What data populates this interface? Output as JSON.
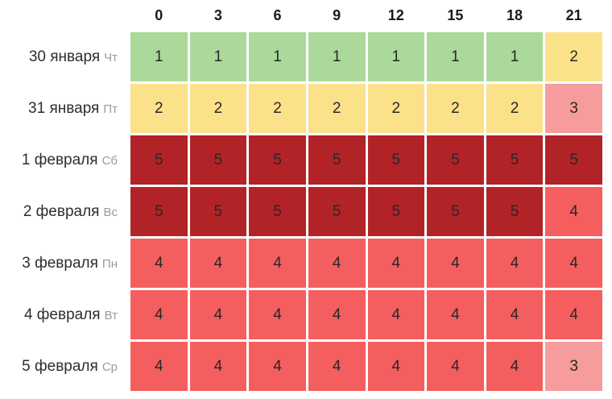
{
  "table": {
    "hours": [
      "0",
      "3",
      "6",
      "9",
      "12",
      "15",
      "18",
      "21"
    ],
    "rows": [
      {
        "date": "30 января",
        "day": "Чт",
        "values": [
          1,
          1,
          1,
          1,
          1,
          1,
          1,
          2
        ]
      },
      {
        "date": "31 января",
        "day": "Пт",
        "values": [
          2,
          2,
          2,
          2,
          2,
          2,
          2,
          3
        ]
      },
      {
        "date": "1 февраля",
        "day": "Сб",
        "values": [
          5,
          5,
          5,
          5,
          5,
          5,
          5,
          5
        ]
      },
      {
        "date": "2 февраля",
        "day": "Вс",
        "values": [
          5,
          5,
          5,
          5,
          5,
          5,
          5,
          4
        ]
      },
      {
        "date": "3 февраля",
        "day": "Пн",
        "values": [
          4,
          4,
          4,
          4,
          4,
          4,
          4,
          4
        ]
      },
      {
        "date": "4 февраля",
        "day": "Вт",
        "values": [
          4,
          4,
          4,
          4,
          4,
          4,
          4,
          4
        ]
      },
      {
        "date": "5 февраля",
        "day": "Ср",
        "values": [
          4,
          4,
          4,
          4,
          4,
          4,
          4,
          3
        ]
      }
    ]
  },
  "colors": {
    "k1": "#abd99a",
    "k2": "#fbe18a",
    "k3": "#f69c9d",
    "k4": "#f55e5e",
    "k5": "#b22327",
    "background": "#ffffff",
    "header_text": "#1a1a1a",
    "cell_text": "#272727",
    "date_text": "#2e2e2e",
    "weekday_text": "#9b9b9b"
  },
  "chart_data": {
    "type": "heatmap",
    "title": "",
    "xlabel": "",
    "ylabel": "",
    "x_categories": [
      "0",
      "3",
      "6",
      "9",
      "12",
      "15",
      "18",
      "21"
    ],
    "y_categories": [
      "30 января Чт",
      "31 января Пт",
      "1 февраля Сб",
      "2 февраля Вс",
      "3 февраля Пн",
      "4 февраля Вт",
      "5 февраля Ср"
    ],
    "values": [
      [
        1,
        1,
        1,
        1,
        1,
        1,
        1,
        2
      ],
      [
        2,
        2,
        2,
        2,
        2,
        2,
        2,
        3
      ],
      [
        5,
        5,
        5,
        5,
        5,
        5,
        5,
        5
      ],
      [
        5,
        5,
        5,
        5,
        5,
        5,
        5,
        4
      ],
      [
        4,
        4,
        4,
        4,
        4,
        4,
        4,
        4
      ],
      [
        4,
        4,
        4,
        4,
        4,
        4,
        4,
        4
      ],
      [
        4,
        4,
        4,
        4,
        4,
        4,
        4,
        3
      ]
    ],
    "value_range": [
      1,
      5
    ],
    "color_scale": {
      "1": "#abd99a",
      "2": "#fbe18a",
      "3": "#f69c9d",
      "4": "#f55e5e",
      "5": "#b22327"
    },
    "grid": false,
    "legend_position": "none"
  }
}
